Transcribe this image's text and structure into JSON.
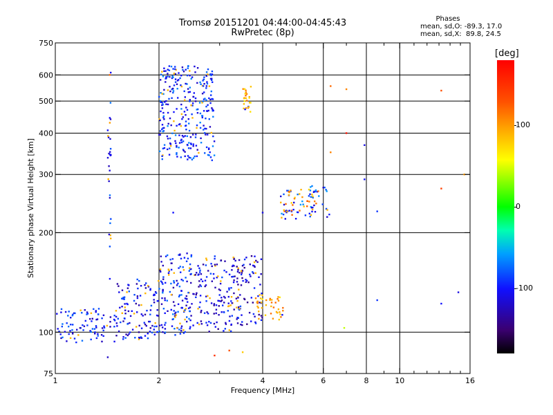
{
  "header": {
    "title": "Tromsø 20151201 04:44:00-04:45:43",
    "subtitle": "RwPretec (8p)"
  },
  "stats": {
    "title": "Phases",
    "line_o": "mean, sd,O: -89.3, 17.0",
    "line_x": "mean, sd,X:  89.8, 24.5"
  },
  "colors": {
    "grid": "#000000",
    "plot_background": "#ffffff"
  },
  "chart_data": {
    "type": "scatter",
    "title": "Tromsø 20151201 04:44:00-04:45:43",
    "subtitle": "RwPretec (8p)",
    "xlabel": "Frequency [MHz]",
    "ylabel": "Stationary phase Virtual Height [km]",
    "x_scale": "log",
    "y_scale": "log",
    "xlim": [
      1,
      16
    ],
    "ylim": [
      75,
      750
    ],
    "x_ticks": [
      1,
      2,
      4,
      6,
      8,
      10,
      16
    ],
    "x_minor_ticks": [
      3,
      5,
      7,
      9,
      11,
      12,
      13,
      14,
      15
    ],
    "x_gridlines": [
      2,
      4,
      6,
      8,
      10
    ],
    "y_ticks": [
      75,
      100,
      200,
      300,
      400,
      500,
      600,
      750
    ],
    "y_gridlines": [
      100,
      200,
      300,
      400,
      500,
      600
    ],
    "grid": true,
    "colorbar": {
      "label": "[deg]",
      "range": [
        -180,
        180
      ],
      "ticks": [
        100,
        0,
        -100
      ],
      "position": "right"
    },
    "clusters": [
      {
        "x_range": [
          1.0,
          1.5
        ],
        "y_range": [
          93,
          118
        ],
        "phase": -100,
        "density": 90
      },
      {
        "x_range": [
          1.5,
          2.0
        ],
        "y_range": [
          95,
          145
        ],
        "phase": -105,
        "density": 120
      },
      {
        "x_range": [
          2.0,
          2.5
        ],
        "y_range": [
          98,
          175
        ],
        "phase": -100,
        "density": 150
      },
      {
        "x_range": [
          2.5,
          3.5
        ],
        "y_range": [
          100,
          170
        ],
        "phase": -110,
        "density": 150
      },
      {
        "x_range": [
          3.2,
          4.0
        ],
        "y_range": [
          105,
          170
        ],
        "phase": -115,
        "density": 80
      },
      {
        "x_range": [
          3.8,
          4.6
        ],
        "y_range": [
          108,
          130
        ],
        "phase": 90,
        "density": 40
      },
      {
        "x_range": [
          2.0,
          2.9
        ],
        "y_range": [
          330,
          640
        ],
        "phase": -95,
        "density": 300
      },
      {
        "x_range": [
          3.5,
          3.7
        ],
        "y_range": [
          460,
          560
        ],
        "phase": 95,
        "density": 25
      },
      {
        "x_range": [
          4.5,
          6.3
        ],
        "y_range": [
          220,
          280
        ],
        "phase": -90,
        "density": 60
      },
      {
        "x_range": [
          4.6,
          5.8
        ],
        "y_range": [
          225,
          270
        ],
        "phase": 100,
        "density": 30
      },
      {
        "x_range": [
          1.42,
          1.45
        ],
        "y_range": [
          180,
          620
        ],
        "phase": -95,
        "density": 25
      }
    ],
    "points": [
      {
        "x": 1.44,
        "y": 600,
        "phase": 120
      },
      {
        "x": 1.44,
        "y": 430,
        "phase": 100
      },
      {
        "x": 1.44,
        "y": 345,
        "phase": -100
      },
      {
        "x": 1.44,
        "y": 255,
        "phase": -120
      },
      {
        "x": 1.44,
        "y": 145,
        "phase": -100
      },
      {
        "x": 1.42,
        "y": 84,
        "phase": -120
      },
      {
        "x": 7.0,
        "y": 543,
        "phase": 110
      },
      {
        "x": 6.3,
        "y": 555,
        "phase": 120
      },
      {
        "x": 13.2,
        "y": 538,
        "phase": 130
      },
      {
        "x": 7.0,
        "y": 400,
        "phase": 170
      },
      {
        "x": 7.9,
        "y": 368,
        "phase": -110
      },
      {
        "x": 6.3,
        "y": 350,
        "phase": 110
      },
      {
        "x": 7.9,
        "y": 290,
        "phase": -100
      },
      {
        "x": 8.6,
        "y": 232,
        "phase": -90
      },
      {
        "x": 13.2,
        "y": 272,
        "phase": 140
      },
      {
        "x": 15.4,
        "y": 300,
        "phase": 100
      },
      {
        "x": 8.6,
        "y": 125,
        "phase": -90
      },
      {
        "x": 6.9,
        "y": 103,
        "phase": 40
      },
      {
        "x": 13.2,
        "y": 122,
        "phase": -100
      },
      {
        "x": 14.8,
        "y": 132,
        "phase": -110
      },
      {
        "x": 3.2,
        "y": 88,
        "phase": 130
      },
      {
        "x": 2.9,
        "y": 85,
        "phase": 150
      },
      {
        "x": 3.5,
        "y": 87,
        "phase": 80
      },
      {
        "x": 2.2,
        "y": 230,
        "phase": -100
      },
      {
        "x": 4.0,
        "y": 230,
        "phase": -110
      }
    ]
  }
}
